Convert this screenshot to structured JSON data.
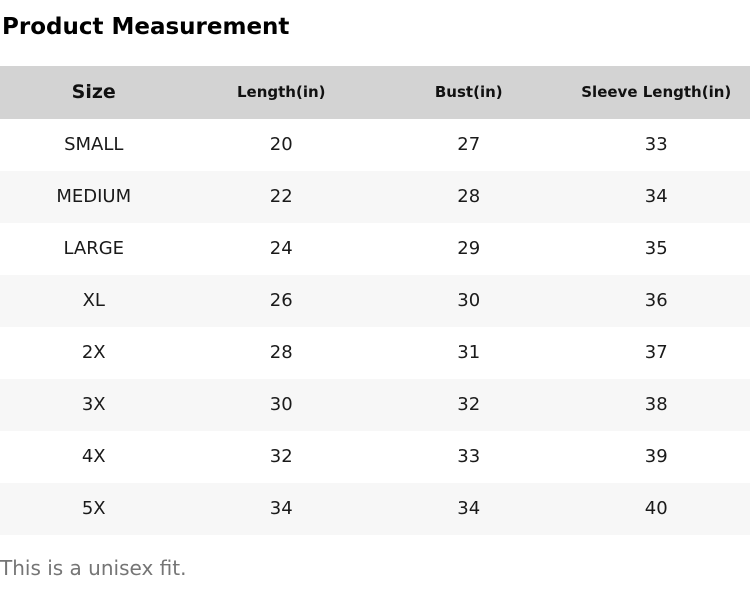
{
  "page": {
    "title": "Product Measurement",
    "footnote": "This is a unisex fit."
  },
  "table": {
    "columns": [
      "Size",
      "Length(in)",
      "Bust(in)",
      "Sleeve Length(in)"
    ],
    "rows": [
      [
        "SMALL",
        "20",
        "27",
        "33"
      ],
      [
        "MEDIUM",
        "22",
        "28",
        "34"
      ],
      [
        "LARGE",
        "24",
        "29",
        "35"
      ],
      [
        "XL",
        "26",
        "30",
        "36"
      ],
      [
        "2X",
        "28",
        "31",
        "37"
      ],
      [
        "3X",
        "30",
        "32",
        "38"
      ],
      [
        "4X",
        "32",
        "33",
        "39"
      ],
      [
        "5X",
        "34",
        "34",
        "40"
      ]
    ]
  },
  "colors": {
    "header_bg": "#d3d3d3",
    "row_alt_bg": "#f7f7f7",
    "title_text": "#000000",
    "body_text": "#1a1a1a",
    "footnote_text": "#757575"
  }
}
